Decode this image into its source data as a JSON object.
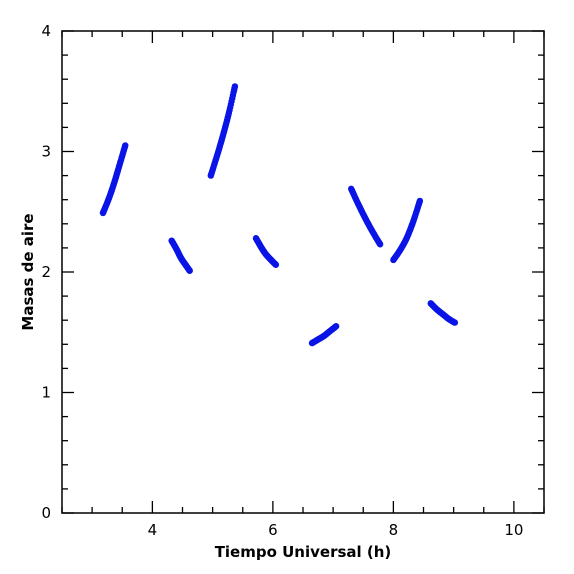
{
  "chart_data": {
    "type": "scatter",
    "title": "",
    "xlabel": "Tiempo Universal (h)",
    "ylabel": "Masas de aire",
    "xlim": [
      2.5,
      10.5
    ],
    "ylim": [
      0,
      4
    ],
    "xticks_major": [
      4,
      6,
      8,
      10
    ],
    "xticks_minor_step": 0.5,
    "yticks_major": [
      0,
      1,
      2,
      3,
      4
    ],
    "yticks_minor_step": 0.2,
    "grid": false,
    "marker_color": "#0a14e6",
    "series": [
      {
        "x": [
          3.18,
          3.27,
          3.36,
          3.45,
          3.55
        ],
        "y": [
          2.49,
          2.6,
          2.73,
          2.88,
          3.05
        ]
      },
      {
        "x": [
          4.97,
          5.07,
          5.17,
          5.27,
          5.37
        ],
        "y": [
          2.8,
          2.96,
          3.13,
          3.32,
          3.54
        ]
      },
      {
        "x": [
          4.32,
          4.4,
          4.47,
          4.55,
          4.62
        ],
        "y": [
          2.26,
          2.19,
          2.12,
          2.06,
          2.01
        ]
      },
      {
        "x": [
          5.72,
          5.8,
          5.88,
          5.97,
          6.05
        ],
        "y": [
          2.28,
          2.21,
          2.15,
          2.1,
          2.06
        ]
      },
      {
        "x": [
          6.65,
          6.75,
          6.85,
          6.95,
          7.05
        ],
        "y": [
          1.41,
          1.44,
          1.47,
          1.51,
          1.55
        ]
      },
      {
        "x": [
          7.3,
          7.42,
          7.54,
          7.66,
          7.78
        ],
        "y": [
          2.69,
          2.56,
          2.44,
          2.33,
          2.23
        ]
      },
      {
        "x": [
          8.0,
          8.11,
          8.22,
          8.33,
          8.44
        ],
        "y": [
          2.1,
          2.18,
          2.28,
          2.42,
          2.59
        ]
      },
      {
        "x": [
          8.62,
          8.72,
          8.82,
          8.92,
          9.02
        ],
        "y": [
          1.74,
          1.69,
          1.65,
          1.61,
          1.58
        ]
      }
    ]
  }
}
